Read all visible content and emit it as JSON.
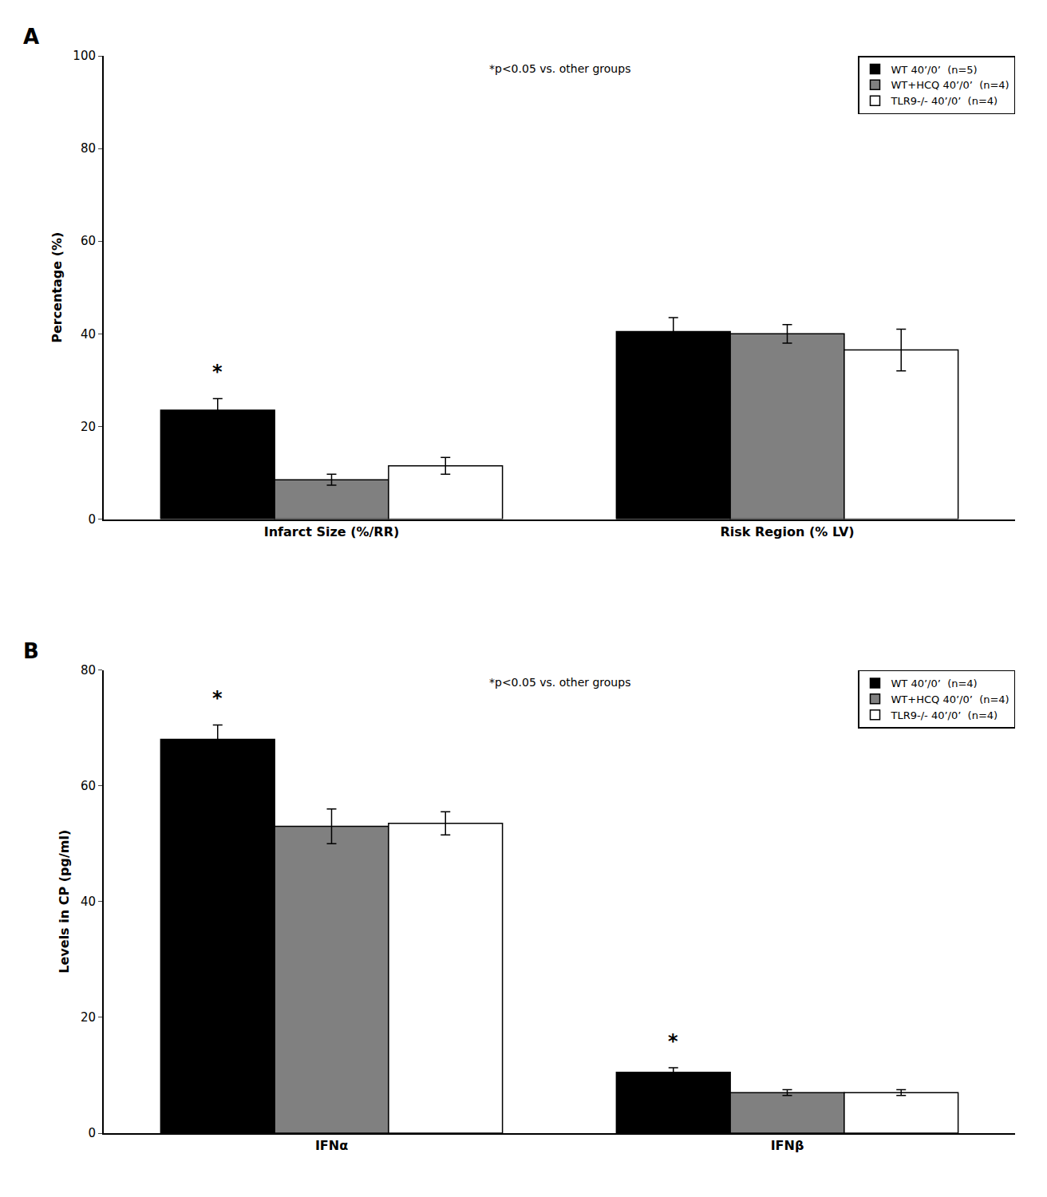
{
  "chart_data": [
    {
      "type": "bar",
      "title": "A",
      "categories": [
        "Infarct Size (%/RR)",
        "Risk Region (% LV)"
      ],
      "series": [
        {
          "name": "WT 40’/0’  (n=5)",
          "color": "#000000",
          "values": [
            23.5,
            40.5
          ],
          "errors": [
            2.5,
            3.0
          ]
        },
        {
          "name": "WT+HCQ 40’/0’  (n=4)",
          "color": "#808080",
          "values": [
            8.5,
            40.0
          ],
          "errors": [
            1.2,
            2.0
          ]
        },
        {
          "name": "TLR9-/- 40’/0’  (n=4)",
          "color": "#ffffff",
          "values": [
            11.5,
            36.5
          ],
          "errors": [
            1.8,
            4.5
          ]
        }
      ],
      "ylabel": "Percentage (%)",
      "ylim": [
        0,
        100
      ],
      "yticks": [
        0,
        20,
        40,
        60,
        80,
        100
      ],
      "grid": false,
      "legend": "upper right",
      "annotations": [
        {
          "text": "*p<0.05 vs. other groups"
        },
        {
          "text": "*",
          "category": "Infarct Size (%/RR)",
          "series": "WT 40’/0’  (n=5)"
        }
      ]
    },
    {
      "type": "bar",
      "title": "B",
      "categories": [
        "IFNα",
        "IFNβ"
      ],
      "series": [
        {
          "name": "WT 40’/0’  (n=4)",
          "color": "#000000",
          "values": [
            68.0,
            10.5
          ],
          "errors": [
            2.5,
            0.8
          ]
        },
        {
          "name": "WT+HCQ 40’/0’  (n=4)",
          "color": "#808080",
          "values": [
            53.0,
            7.0
          ],
          "errors": [
            3.0,
            0.5
          ]
        },
        {
          "name": "TLR9-/- 40’/0’  (n=4)",
          "color": "#ffffff",
          "values": [
            53.5,
            7.0
          ],
          "errors": [
            2.0,
            0.5
          ]
        }
      ],
      "ylabel": "Levels in CP (pg/ml)",
      "ylim": [
        0,
        80
      ],
      "yticks": [
        0,
        20,
        40,
        60,
        80
      ],
      "grid": false,
      "legend": "upper right",
      "annotations": [
        {
          "text": "*p<0.05 vs. other groups"
        },
        {
          "text": "*",
          "category": "IFNα",
          "series": "WT 40’/0’  (n=4)"
        },
        {
          "text": "*",
          "category": "IFNβ",
          "series": "WT 40’/0’  (n=4)"
        }
      ]
    }
  ]
}
